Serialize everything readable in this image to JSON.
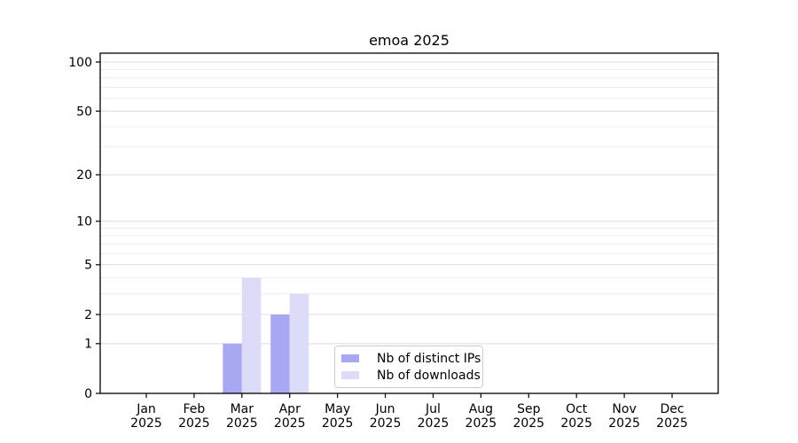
{
  "chart_data": {
    "type": "bar",
    "title": "emoa 2025",
    "categories": [
      "Jan",
      "Feb",
      "Mar",
      "Apr",
      "May",
      "Jun",
      "Jul",
      "Aug",
      "Sep",
      "Oct",
      "Nov",
      "Dec"
    ],
    "year_label": "2025",
    "series": [
      {
        "name": "Nb of distinct IPs",
        "color": "#a8a8f2",
        "values": [
          0,
          0,
          1,
          2,
          0,
          0,
          0,
          0,
          0,
          0,
          0,
          0
        ]
      },
      {
        "name": "Nb of downloads",
        "color": "#dcdcf8",
        "values": [
          0,
          0,
          4,
          3,
          0,
          0,
          0,
          0,
          0,
          0,
          0,
          0
        ]
      }
    ],
    "yscale": "log1p",
    "ylim": [
      0,
      100
    ],
    "ytick_values": [
      0,
      1,
      2,
      5,
      10,
      20,
      50,
      100
    ],
    "minor_grid_values": [
      3,
      4,
      6,
      7,
      8,
      9,
      30,
      40,
      60,
      70,
      80,
      90
    ],
    "major_grid_values": [
      1,
      2,
      5,
      10,
      20,
      50,
      100
    ],
    "grid": "horizontal",
    "legend_position": "lower-center",
    "colors": {
      "major_grid": "#dcdcdc",
      "minor_grid": "#ededed",
      "spine": "#000000",
      "legend_border": "#cccccc",
      "background": "#ffffff"
    }
  }
}
